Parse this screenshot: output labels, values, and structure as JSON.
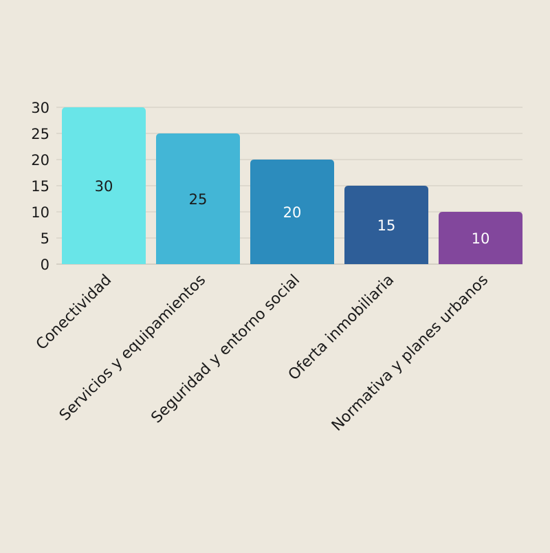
{
  "chart_data": {
    "type": "bar",
    "categories": [
      "Conectividad",
      "Servicios y equipamientos",
      "Seguridad y entorno social",
      "Oferta inmobiliaria",
      "Normativa y planes urbanos"
    ],
    "values": [
      30,
      25,
      20,
      15,
      10
    ],
    "colors": [
      "#69e5e8",
      "#43b6d6",
      "#2c8cbd",
      "#2e5e98",
      "#82479c"
    ],
    "value_label_colors": [
      "#1a1a1a",
      "#1a1a1a",
      "#ffffff",
      "#ffffff",
      "#ffffff"
    ],
    "title": "",
    "xlabel": "",
    "ylabel": "",
    "ylim": [
      0,
      30
    ],
    "yticks": [
      0,
      5,
      10,
      15,
      20,
      25,
      30
    ],
    "grid": true,
    "background": "#ede8dd"
  }
}
